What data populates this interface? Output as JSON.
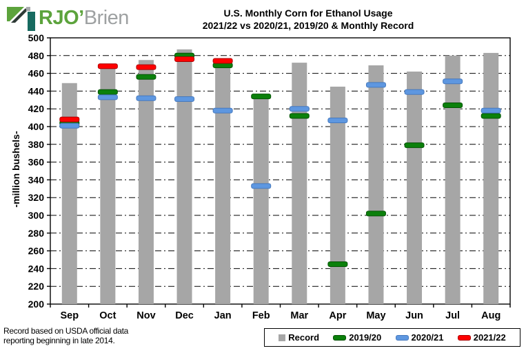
{
  "logo": {
    "brand_first": "RJO",
    "apostrophe": "’",
    "brand_second": "Brien"
  },
  "title": {
    "line1": "U.S. Monthly  Corn for Ethanol Usage",
    "line2": "2021/22  vs 2020/21, 2019/20 & Monthly  Record"
  },
  "y_axis_title": "-million bushels-",
  "footnote": {
    "line1": "Record based on USDA official data",
    "line2": "reporting  beginning  in late 2014."
  },
  "chart_data": {
    "type": "bar",
    "title": "U.S. Monthly Corn for Ethanol Usage 2021/22 vs 2020/21, 2019/20 & Monthly Record",
    "ylabel": "-million bushels-",
    "ylim": [
      200,
      500
    ],
    "ytick_step": 20,
    "grid": "dashed horizontal",
    "legend_position": "bottom-right",
    "categories": [
      "Sep",
      "Oct",
      "Nov",
      "Dec",
      "Jan",
      "Feb",
      "Mar",
      "Apr",
      "May",
      "Jun",
      "Jul",
      "Aug"
    ],
    "series": [
      {
        "name": "Record",
        "style": "bar",
        "color": "#a6a6a6",
        "border": "#9a9a9a",
        "values": [
          449,
          469,
          475,
          487,
          476,
          434,
          472,
          445,
          469,
          462,
          480,
          483
        ]
      },
      {
        "name": "2019/20",
        "style": "dash",
        "color": "#0b800b",
        "border": "#065306",
        "values": [
          404,
          439,
          456,
          480,
          469,
          434,
          412,
          245,
          302,
          379,
          424,
          412
        ]
      },
      {
        "name": "2020/21",
        "style": "dash",
        "color": "#5e97e0",
        "border": "#4679bd",
        "values": [
          401,
          433,
          432,
          431,
          418,
          333,
          420,
          407,
          447,
          439,
          451,
          418
        ]
      },
      {
        "name": "2021/22",
        "style": "dash",
        "color": "#fe0000",
        "border": "#aa0000",
        "values": [
          408,
          468,
          467,
          476,
          474,
          null,
          null,
          null,
          null,
          null,
          null,
          null
        ]
      }
    ]
  },
  "legend": {
    "items": [
      {
        "label": "Record",
        "swatch": "square",
        "color": "#a6a6a6",
        "border": "#a6a6a6"
      },
      {
        "label": "2019/20",
        "swatch": "dash",
        "color": "#0b800b",
        "border": "#065306"
      },
      {
        "label": "2020/21",
        "swatch": "dash",
        "color": "#5e97e0",
        "border": "#4679bd"
      },
      {
        "label": "2021/22",
        "swatch": "dash",
        "color": "#fe0000",
        "border": "#aa0000"
      }
    ]
  }
}
